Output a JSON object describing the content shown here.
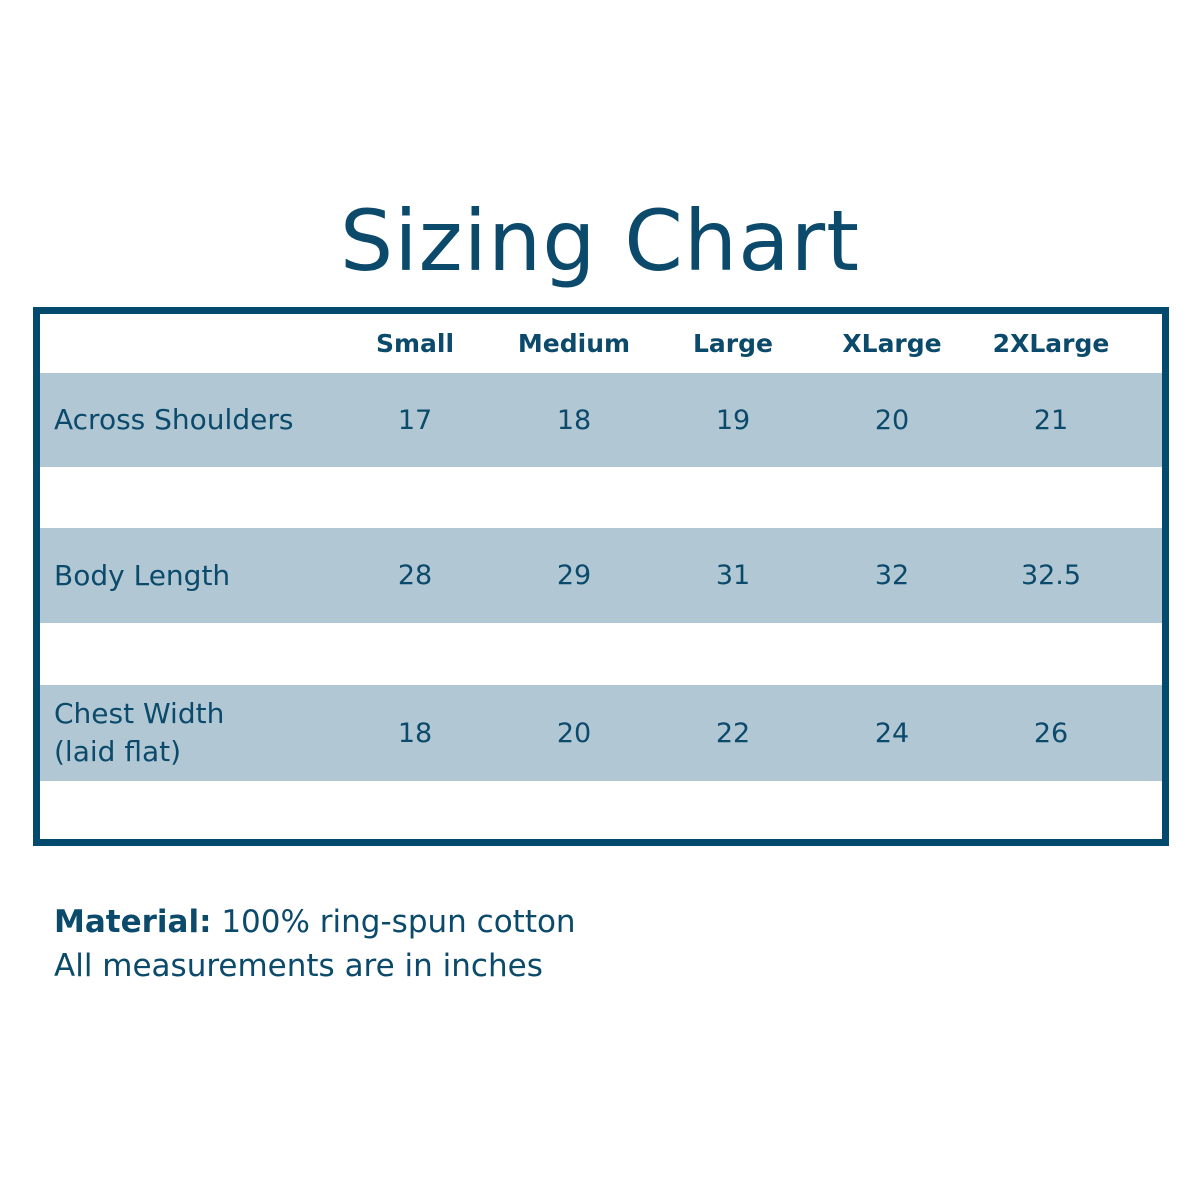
{
  "title": "Sizing Chart",
  "colors": {
    "text": "#0b4a6b",
    "border": "#034a6e",
    "band": "#b1c8d4"
  },
  "chart_data": {
    "type": "table",
    "columns": [
      "Small",
      "Medium",
      "Large",
      "XLarge",
      "2XLarge"
    ],
    "rows": [
      {
        "label": "Across Shoulders",
        "label2": "",
        "values": [
          "17",
          "18",
          "19",
          "20",
          "21"
        ]
      },
      {
        "label": "Body Length",
        "label2": "",
        "values": [
          "28",
          "29",
          "31",
          "32",
          "32.5"
        ]
      },
      {
        "label": "Chest Width",
        "label2": "(laid flat)",
        "values": [
          "18",
          "20",
          "22",
          "24",
          "26"
        ]
      }
    ]
  },
  "notes": {
    "material_label": "Material:",
    "material_value": " 100% ring-spun cotton",
    "units": "All measurements are in inches"
  }
}
